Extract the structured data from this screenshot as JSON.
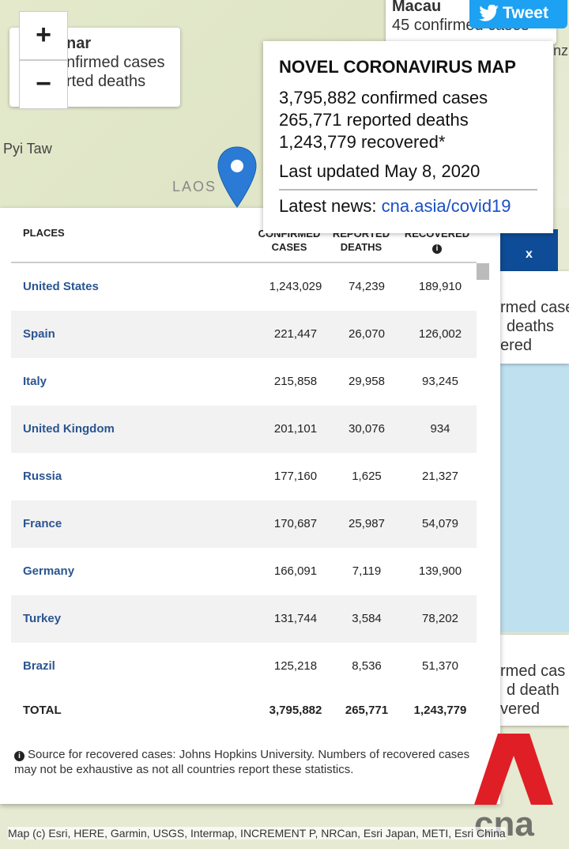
{
  "map": {
    "zoom_in": "+",
    "zoom_out": "−",
    "popup_left": {
      "name": "nar",
      "lines": [
        "nfirmed cases",
        "rted deaths"
      ]
    },
    "labels": [
      "Pyi Taw",
      "LAOS"
    ],
    "popup_top": {
      "name": "Macau",
      "line": "45 confirmed cases"
    },
    "edge_text": "nz",
    "close": "x",
    "right_popups": [
      [
        "rmed case",
        "deaths",
        "ered"
      ],
      [
        "rmed cas",
        "d death",
        "vered"
      ]
    ],
    "attribution": "Map (c) Esri, HERE, Garmin, USGS, Intermap, INCREMENT P, NRCan, Esri Japan, METI, Esri China"
  },
  "tweet": "Tweet",
  "info": {
    "title": "NOVEL CORONAVIRUS MAP",
    "lines": [
      "3,795,882 confirmed cases",
      "265,771 reported deaths",
      "1,243,779 recovered*"
    ],
    "updated": "Last updated May 8, 2020",
    "news_label": "Latest news:",
    "news_link": "cna.asia/covid19"
  },
  "table": {
    "headers": [
      "PLACES",
      "CONFIRMED CASES",
      "REPORTED DEATHS",
      "RECOVERED"
    ],
    "rows": [
      [
        "United States",
        "1,243,029",
        "74,239",
        "189,910"
      ],
      [
        "Spain",
        "221,447",
        "26,070",
        "126,002"
      ],
      [
        "Italy",
        "215,858",
        "29,958",
        "93,245"
      ],
      [
        "United Kingdom",
        "201,101",
        "30,076",
        "934"
      ],
      [
        "Russia",
        "177,160",
        "1,625",
        "21,327"
      ],
      [
        "France",
        "170,687",
        "25,987",
        "54,079"
      ],
      [
        "Germany",
        "166,091",
        "7,119",
        "139,900"
      ],
      [
        "Turkey",
        "131,744",
        "3,584",
        "78,202"
      ],
      [
        "Brazil",
        "125,218",
        "8,536",
        "51,370"
      ]
    ],
    "total": [
      "TOTAL",
      "3,795,882",
      "265,771",
      "1,243,779"
    ],
    "footnote": "Source for recovered cases: Johns Hopkins University. Numbers of recovered cases may not be exhaustive as not all countries report these statistics."
  },
  "logo": "cna"
}
